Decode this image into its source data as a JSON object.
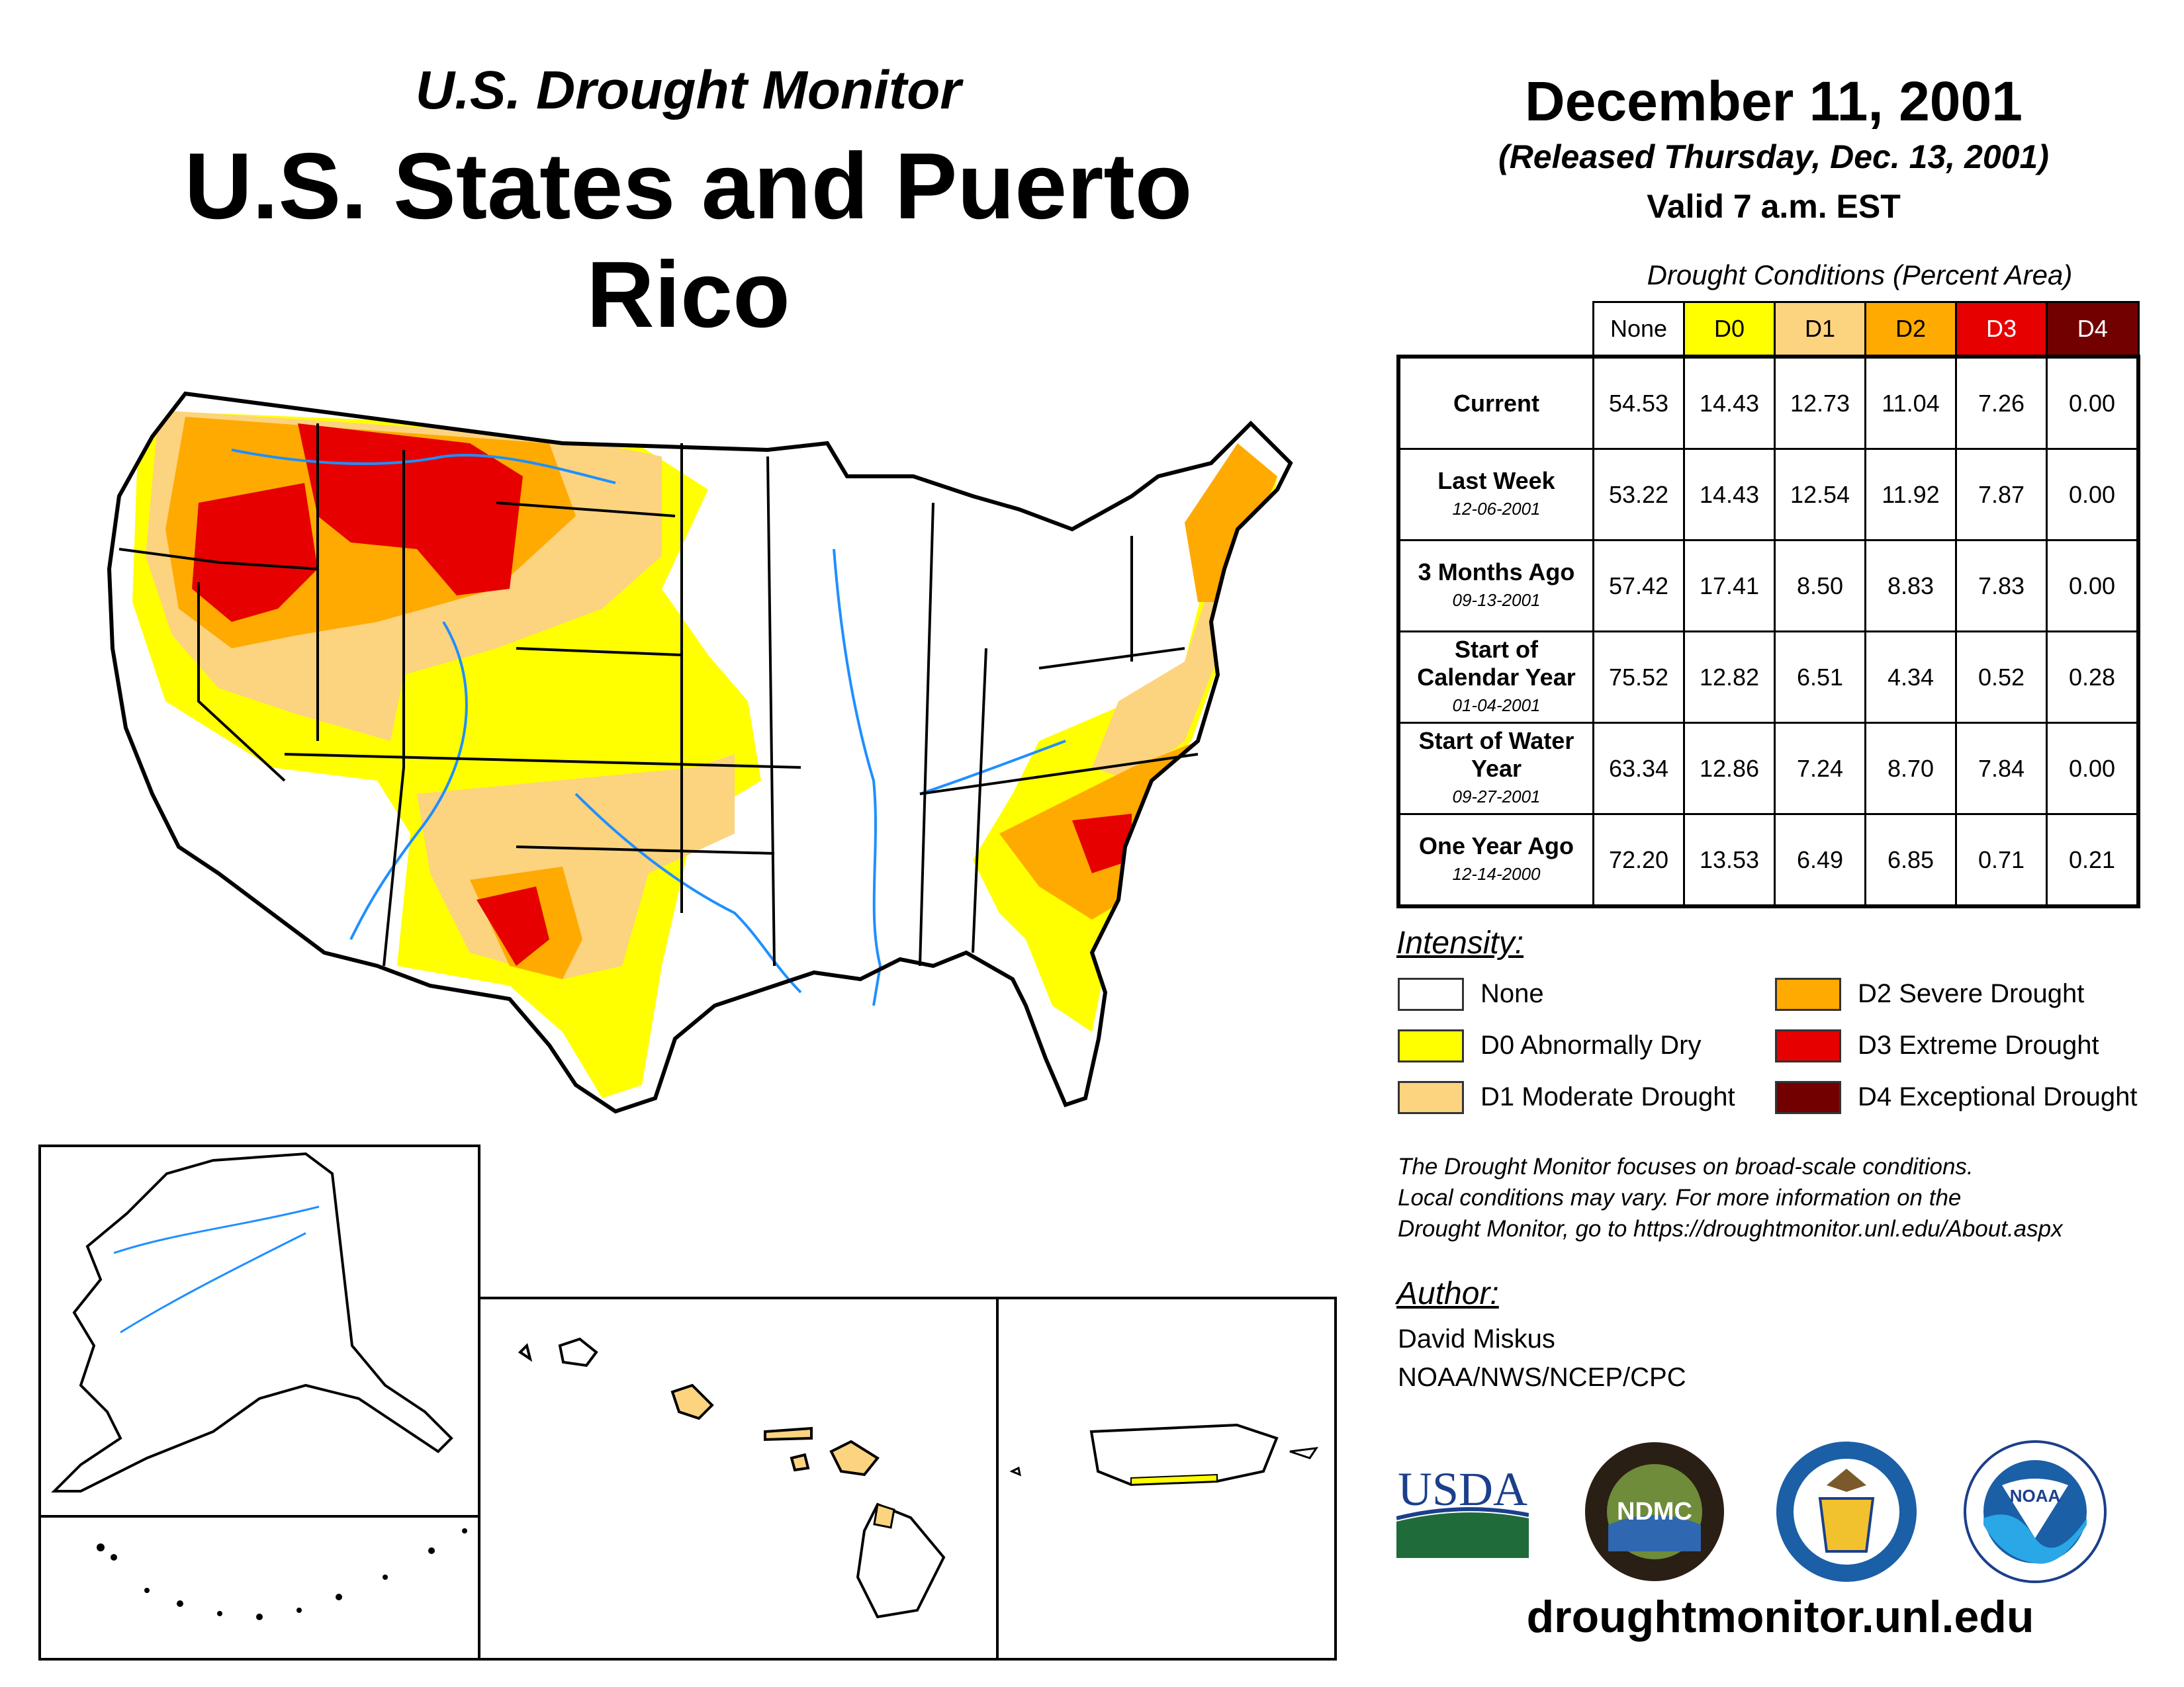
{
  "header": {
    "subtitle": "U.S. Drought Monitor",
    "title": "U.S. States and Puerto Rico",
    "date": "December 11, 2001",
    "released": "(Released Thursday, Dec. 13, 2001)",
    "valid": "Valid 7 a.m. EST"
  },
  "table": {
    "caption": "Drought Conditions (Percent Area)",
    "columns": [
      "None",
      "D0",
      "D1",
      "D2",
      "D3",
      "D4"
    ],
    "rows": [
      {
        "label": "Current",
        "date": "",
        "values": [
          "54.53",
          "14.43",
          "12.73",
          "11.04",
          "7.26",
          "0.00"
        ]
      },
      {
        "label": "Last Week",
        "date": "12-06-2001",
        "values": [
          "53.22",
          "14.43",
          "12.54",
          "11.92",
          "7.87",
          "0.00"
        ]
      },
      {
        "label": "3 Months Ago",
        "date": "09-13-2001",
        "values": [
          "57.42",
          "17.41",
          "8.50",
          "8.83",
          "7.83",
          "0.00"
        ]
      },
      {
        "label": "Start of Calendar Year",
        "date": "01-04-2001",
        "values": [
          "75.52",
          "12.82",
          "6.51",
          "4.34",
          "0.52",
          "0.28"
        ]
      },
      {
        "label": "Start of Water Year",
        "date": "09-27-2001",
        "values": [
          "63.34",
          "12.86",
          "7.24",
          "8.70",
          "7.84",
          "0.00"
        ]
      },
      {
        "label": "One Year Ago",
        "date": "12-14-2000",
        "values": [
          "72.20",
          "13.53",
          "6.49",
          "6.85",
          "0.71",
          "0.21"
        ]
      }
    ]
  },
  "legend": {
    "title": "Intensity:",
    "items": [
      {
        "label": "None",
        "color": "#ffffff"
      },
      {
        "label": "D0 Abnormally Dry",
        "color": "#ffff00"
      },
      {
        "label": "D1 Moderate Drought",
        "color": "#fcd37f"
      },
      {
        "label": "D2 Severe Drought",
        "color": "#ffaa00"
      },
      {
        "label": "D3 Extreme Drought",
        "color": "#e60000"
      },
      {
        "label": "D4 Exceptional Drought",
        "color": "#730000"
      }
    ]
  },
  "note": {
    "line1": "The Drought Monitor focuses on broad-scale conditions.",
    "line2": "Local conditions may vary. For more information on the",
    "line3": "Drought Monitor, go to https://droughtmonitor.unl.edu/About.aspx"
  },
  "author": {
    "title": "Author:",
    "name": "David Miskus",
    "org": "NOAA/NWS/NCEP/CPC"
  },
  "logos": {
    "usda": "USDA",
    "ndmc": "NDMC",
    "noaa": "NOAA"
  },
  "website": "droughtmonitor.unl.edu",
  "colors": {
    "river": "#1f8fff",
    "border": "#000000"
  }
}
